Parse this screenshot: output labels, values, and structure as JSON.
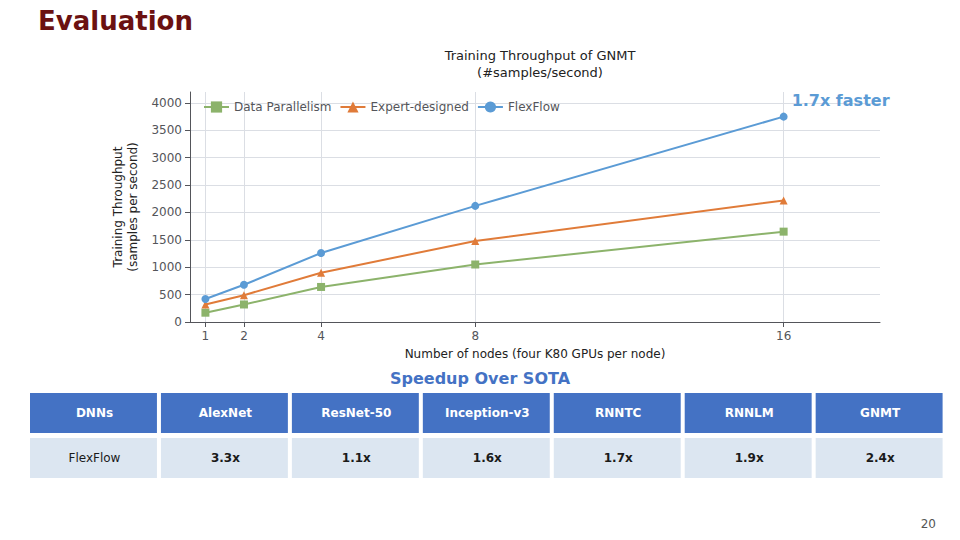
{
  "page_title": {
    "text": "Evaluation",
    "color": "#6b1111"
  },
  "chart_data": {
    "type": "line",
    "title": "Training Throughput of GNMT\n(#samples/second)",
    "xlabel": "Number of nodes (four K80 GPUs per node)",
    "ylabel": "Training Throughput\n(samples per second)",
    "x": [
      1,
      2,
      4,
      8,
      16
    ],
    "series": [
      {
        "name": "Data Parallelism",
        "color": "#8cb36b",
        "marker": "square",
        "values": [
          170,
          320,
          640,
          1050,
          1650
        ]
      },
      {
        "name": "Expert-designed",
        "color": "#e07b39",
        "marker": "triangle",
        "values": [
          320,
          490,
          900,
          1480,
          2220
        ]
      },
      {
        "name": "FlexFlow",
        "color": "#5b9bd5",
        "marker": "circle",
        "values": [
          420,
          680,
          1260,
          2120,
          3750
        ]
      }
    ],
    "xlim": [
      0.6,
      18.5
    ],
    "xticks": [
      1,
      2,
      4,
      8,
      16
    ],
    "ylim": [
      0,
      4200
    ],
    "yticks": [
      0,
      500,
      1000,
      1500,
      2000,
      2500,
      3000,
      3500,
      4000
    ],
    "grid": true,
    "legend": "upper left",
    "annotations": [
      {
        "text": "1.7x faster",
        "x": 16,
        "y": 3750,
        "color": "#5b9bd5"
      }
    ]
  },
  "table": {
    "title": "Speedup Over SOTA",
    "title_color": "#4472c4",
    "header_color": "#4472c4",
    "header_text_color": "#ffffff",
    "row_color": "#dce6f1",
    "headers": [
      "DNNs",
      "AlexNet",
      "ResNet-50",
      "Inception-v3",
      "RNNTC",
      "RNNLM",
      "GNMT"
    ],
    "rows": [
      [
        "FlexFlow",
        "3.3x",
        "1.1x",
        "1.6x",
        "1.7x",
        "1.9x",
        "2.4x"
      ]
    ]
  },
  "page_number": "20"
}
